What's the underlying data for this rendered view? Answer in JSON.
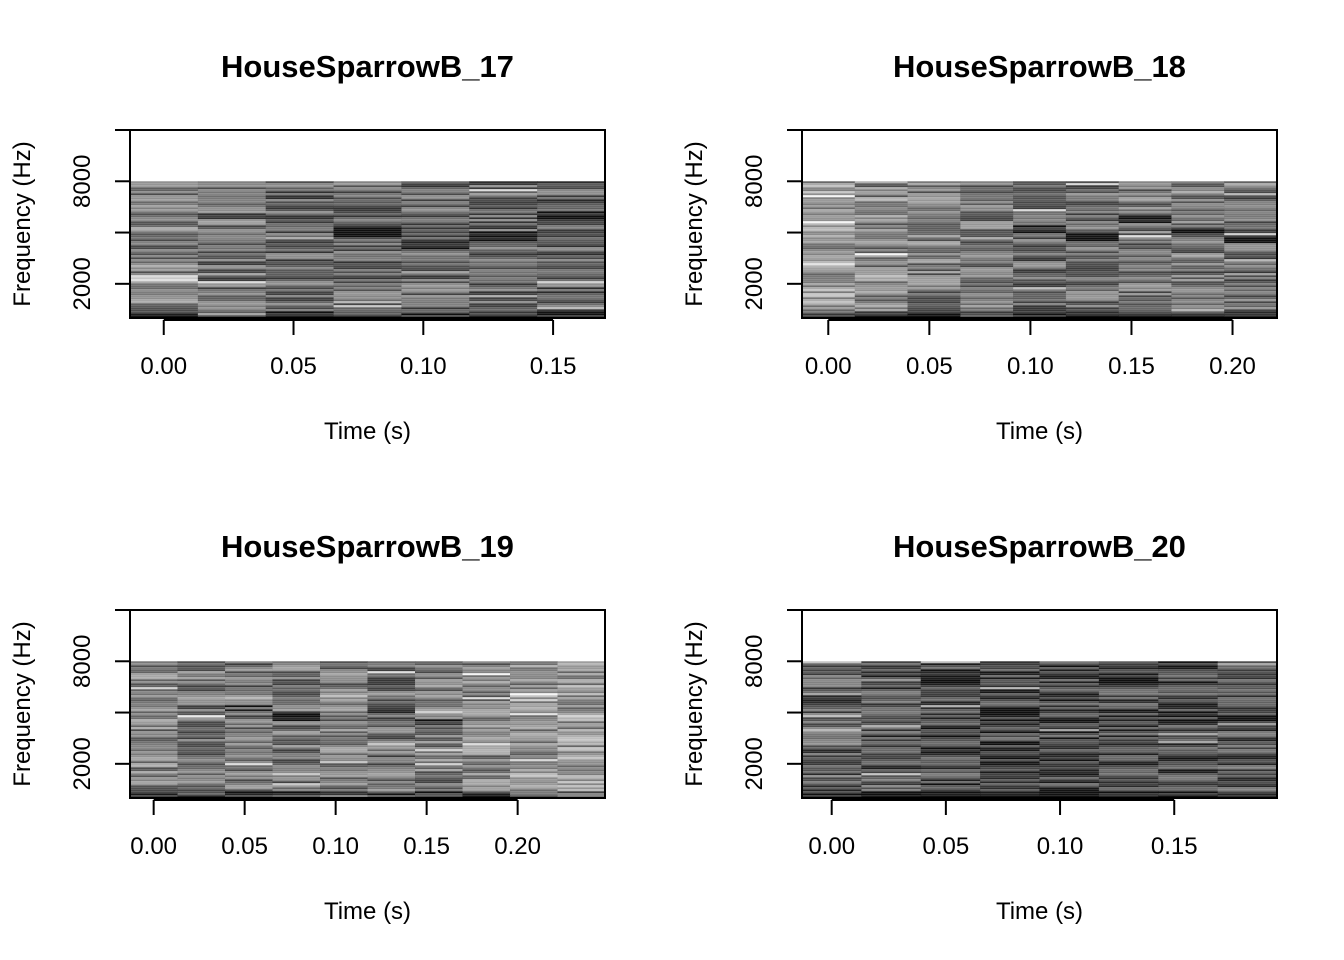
{
  "chart_data": [
    {
      "type": "heatmap",
      "title": "HouseSparrowB_17",
      "xlabel": "Time (s)",
      "ylabel": "Frequency (Hz)",
      "xlim": [
        -0.013,
        0.17
      ],
      "ylim": [
        0,
        11000
      ],
      "x_ticks": [
        0.0,
        0.05,
        0.1,
        0.15
      ],
      "x_tick_labels": [
        "0.00",
        "0.05",
        "0.10",
        "0.15"
      ],
      "y_ticks": [
        2000,
        5000,
        8000
      ],
      "y_tick_labels": [
        "2000",
        "",
        "8000"
      ],
      "y_minor_ticks": [
        5000,
        11000
      ],
      "data_fmax_hz": 8000,
      "time_frames": 7,
      "mean_intensity": [
        0.48,
        0.4,
        0.38,
        0.4,
        0.4,
        0.38,
        0.36
      ],
      "dark_band_hz": [
        null,
        null,
        null,
        5000,
        4300,
        4800,
        6000
      ]
    },
    {
      "type": "heatmap",
      "title": "HouseSparrowB_18",
      "xlabel": "Time (s)",
      "ylabel": "Frequency (Hz)",
      "xlim": [
        -0.013,
        0.222
      ],
      "ylim": [
        0,
        11000
      ],
      "x_ticks": [
        0.0,
        0.05,
        0.1,
        0.15,
        0.2
      ],
      "x_tick_labels": [
        "0.00",
        "0.05",
        "0.10",
        "0.15",
        "0.20"
      ],
      "y_ticks": [
        2000,
        5000,
        8000
      ],
      "y_tick_labels": [
        "2000",
        "",
        "8000"
      ],
      "y_minor_ticks": [
        5000,
        11000
      ],
      "data_fmax_hz": 8000,
      "time_frames": 9,
      "mean_intensity": [
        0.58,
        0.5,
        0.46,
        0.44,
        0.4,
        0.42,
        0.44,
        0.42,
        0.4
      ],
      "dark_band_hz": [
        null,
        null,
        null,
        null,
        5200,
        4800,
        5800,
        5000,
        4600
      ]
    },
    {
      "type": "heatmap",
      "title": "HouseSparrowB_19",
      "xlabel": "Time (s)",
      "ylabel": "Frequency (Hz)",
      "xlim": [
        -0.013,
        0.248
      ],
      "ylim": [
        0,
        11000
      ],
      "x_ticks": [
        0.0,
        0.05,
        0.1,
        0.15,
        0.2
      ],
      "x_tick_labels": [
        "0.00",
        "0.05",
        "0.10",
        "0.15",
        "0.20"
      ],
      "y_ticks": [
        2000,
        5000,
        8000
      ],
      "y_tick_labels": [
        "2000",
        "",
        "8000"
      ],
      "y_minor_ticks": [
        5000,
        11000
      ],
      "data_fmax_hz": 8000,
      "time_frames": 10,
      "mean_intensity": [
        0.48,
        0.44,
        0.42,
        0.44,
        0.46,
        0.42,
        0.46,
        0.5,
        0.56,
        0.58
      ],
      "dark_band_hz": [
        null,
        null,
        5200,
        4700,
        null,
        5200,
        4300,
        null,
        null,
        null
      ]
    },
    {
      "type": "heatmap",
      "title": "HouseSparrowB_20",
      "xlabel": "Time (s)",
      "ylabel": "Frequency (Hz)",
      "xlim": [
        -0.013,
        0.195
      ],
      "ylim": [
        0,
        11000
      ],
      "x_ticks": [
        0.0,
        0.05,
        0.1,
        0.15
      ],
      "x_tick_labels": [
        "0.00",
        "0.05",
        "0.10",
        "0.15"
      ],
      "y_ticks": [
        2000,
        5000,
        8000
      ],
      "y_tick_labels": [
        "2000",
        "",
        "8000"
      ],
      "y_minor_ticks": [
        5000,
        11000
      ],
      "data_fmax_hz": 8000,
      "time_frames": 8,
      "mean_intensity": [
        0.34,
        0.3,
        0.26,
        0.24,
        0.26,
        0.28,
        0.28,
        0.3
      ],
      "dark_band_hz": [
        null,
        null,
        6800,
        5000,
        4500,
        6800,
        4800,
        4700
      ]
    }
  ]
}
